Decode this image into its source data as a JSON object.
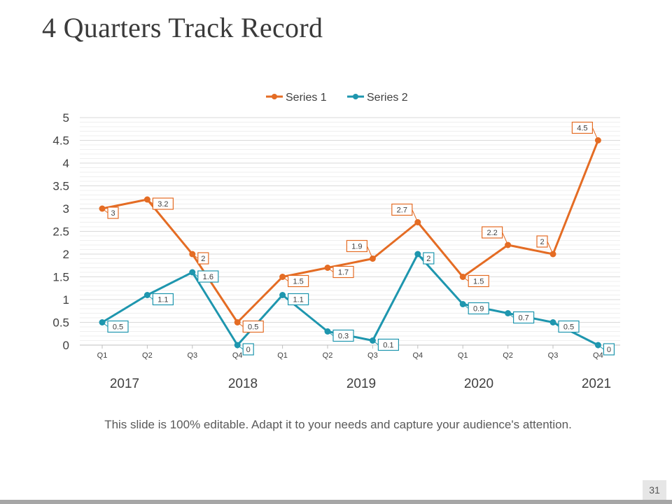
{
  "slide": {
    "title": "4 Quarters Track Record",
    "caption": "This slide is 100% editable. Adapt it to your needs and capture your audience's attention.",
    "page_number": "31"
  },
  "chart_data": {
    "type": "line",
    "categories": [
      "Q1",
      "Q2",
      "Q3",
      "Q4",
      "Q1",
      "Q2",
      "Q3",
      "Q4",
      "Q1",
      "Q2",
      "Q3",
      "Q4"
    ],
    "year_labels": [
      "2017",
      "2018",
      "2019",
      "2020",
      "2021"
    ],
    "series": [
      {
        "name": "Series 1",
        "color": "#E46C24",
        "values": [
          3,
          3.2,
          2,
          0.5,
          1.5,
          1.7,
          1.9,
          2.7,
          1.5,
          2.2,
          2,
          4.5
        ]
      },
      {
        "name": "Series 2",
        "color": "#1E96AE",
        "values": [
          0.5,
          1.1,
          1.6,
          0,
          1.1,
          0.3,
          0.1,
          2,
          0.9,
          0.7,
          0.5,
          0
        ]
      }
    ],
    "yticks": [
      "0",
      "0.5",
      "1",
      "1.5",
      "2",
      "2.5",
      "3",
      "3.5",
      "4",
      "4.5",
      "5"
    ],
    "ylim": [
      0,
      5
    ],
    "title": "",
    "xlabel": "",
    "ylabel": "",
    "legend_position": "top-center",
    "grid": true
  }
}
